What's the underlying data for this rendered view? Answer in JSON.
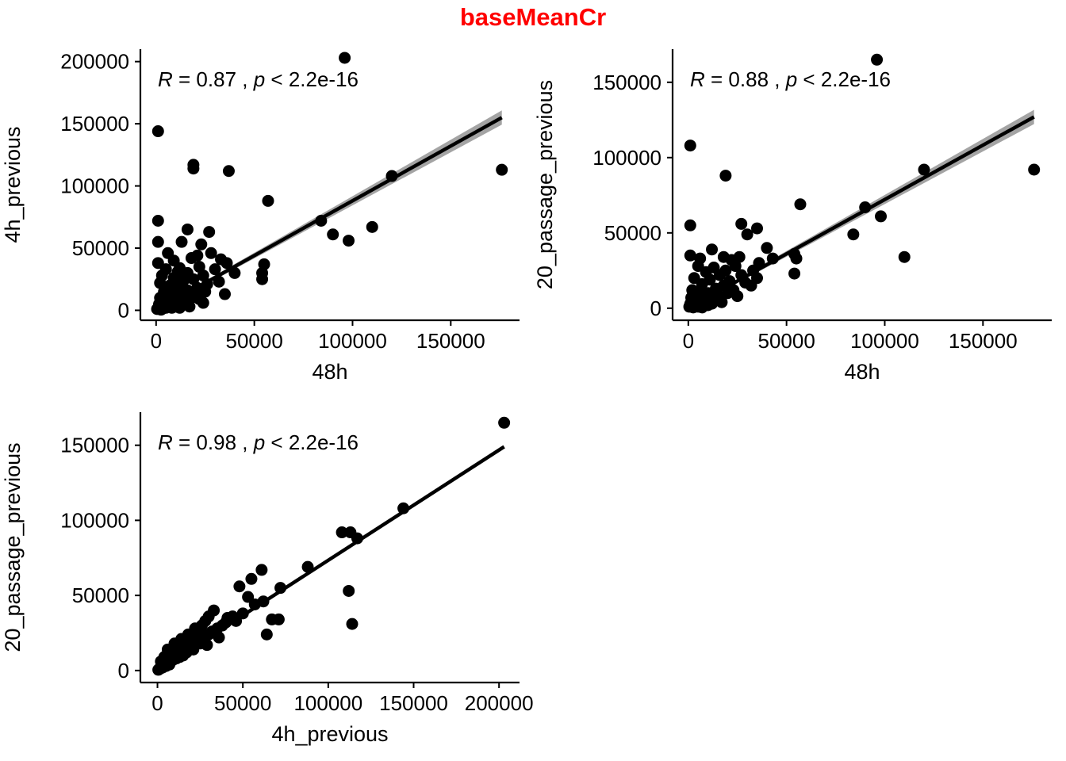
{
  "figure": {
    "title": "baseMeanCr",
    "title_color": "#ff0000"
  },
  "chart_data": [
    {
      "type": "scatter",
      "xlabel": "48h",
      "ylabel": "4h_previous",
      "xlim": [
        -8000,
        185000
      ],
      "ylim": [
        -8000,
        210000
      ],
      "x_ticks": [
        0,
        50000,
        100000,
        150000
      ],
      "x_tick_labels": [
        "0",
        "50000",
        "100000",
        "150000"
      ],
      "y_ticks": [
        0,
        50000,
        100000,
        150000,
        200000
      ],
      "y_tick_labels": [
        "0",
        "50000",
        "100000",
        "150000",
        "200000"
      ],
      "stat": {
        "r_label": "R",
        "r_value": "0.87",
        "p_label": "p",
        "p_value": "2.2e-16"
      },
      "fit": {
        "x0": 0,
        "y0": 0,
        "x1": 176000,
        "y1": 155000,
        "band": true
      },
      "points": [
        [
          96000,
          203000
        ],
        [
          1000,
          144000
        ],
        [
          19000,
          117000
        ],
        [
          19000,
          114000
        ],
        [
          37000,
          112000
        ],
        [
          120000,
          108000
        ],
        [
          176000,
          113000
        ],
        [
          57000,
          88000
        ],
        [
          84000,
          72000
        ],
        [
          90000,
          61000
        ],
        [
          98000,
          56000
        ],
        [
          110000,
          67000
        ],
        [
          1000,
          72000
        ],
        [
          1000,
          55000
        ],
        [
          16000,
          65000
        ],
        [
          27000,
          63000
        ],
        [
          13000,
          55000
        ],
        [
          6000,
          46000
        ],
        [
          23000,
          53000
        ],
        [
          1000,
          38000
        ],
        [
          9000,
          40000
        ],
        [
          18000,
          42000
        ],
        [
          21000,
          44000
        ],
        [
          28000,
          46000
        ],
        [
          33000,
          41000
        ],
        [
          36000,
          38000
        ],
        [
          40000,
          30000
        ],
        [
          55000,
          37000
        ],
        [
          54000,
          30000
        ],
        [
          54000,
          25000
        ],
        [
          35000,
          13000
        ],
        [
          30000,
          33000
        ],
        [
          32000,
          23000
        ],
        [
          3000,
          28000
        ],
        [
          5000,
          33000
        ],
        [
          7000,
          20000
        ],
        [
          9000,
          26000
        ],
        [
          11000,
          31000
        ],
        [
          14000,
          24000
        ],
        [
          16000,
          30000
        ],
        [
          19000,
          25000
        ],
        [
          21000,
          18000
        ],
        [
          24000,
          28000
        ],
        [
          26000,
          21000
        ],
        [
          12000,
          34000
        ],
        [
          22000,
          35000
        ],
        [
          25000,
          15000
        ],
        [
          2000,
          22000
        ],
        [
          4000,
          15000
        ],
        [
          6000,
          12000
        ],
        [
          8000,
          17000
        ],
        [
          10000,
          14000
        ],
        [
          12000,
          19000
        ],
        [
          14000,
          12000
        ],
        [
          16000,
          16000
        ],
        [
          18000,
          10000
        ],
        [
          20000,
          14000
        ],
        [
          22000,
          9000
        ],
        [
          24000,
          6000
        ],
        [
          2000,
          10000
        ],
        [
          3000,
          6000
        ],
        [
          5000,
          8000
        ],
        [
          7000,
          4000
        ],
        [
          9000,
          7000
        ],
        [
          11000,
          5000
        ],
        [
          13000,
          8000
        ],
        [
          15000,
          5000
        ],
        [
          17000,
          3000
        ],
        [
          1000,
          2000
        ],
        [
          2000,
          3000
        ],
        [
          3000,
          1000
        ],
        [
          4000,
          4000
        ],
        [
          5000,
          2000
        ],
        [
          6000,
          6000
        ],
        [
          8000,
          2000
        ],
        [
          10000,
          3000
        ],
        [
          12000,
          2000
        ],
        [
          1500,
          5000
        ],
        [
          500,
          1000
        ],
        [
          2500,
          500
        ],
        [
          4500,
          2500
        ],
        [
          7000,
          9000
        ]
      ]
    },
    {
      "type": "scatter",
      "xlabel": "48h",
      "ylabel": "20_passage_previous",
      "xlim": [
        -8000,
        185000
      ],
      "ylim": [
        -8000,
        172000
      ],
      "x_ticks": [
        0,
        50000,
        100000,
        150000
      ],
      "x_tick_labels": [
        "0",
        "50000",
        "100000",
        "150000"
      ],
      "y_ticks": [
        0,
        50000,
        100000,
        150000
      ],
      "y_tick_labels": [
        "0",
        "50000",
        "100000",
        "150000"
      ],
      "stat": {
        "r_label": "R",
        "r_value": "0.88",
        "p_label": "p",
        "p_value": "2.2e-16"
      },
      "fit": {
        "x0": 0,
        "y0": 0,
        "x1": 176000,
        "y1": 127000,
        "band": true
      },
      "points": [
        [
          96000,
          165000
        ],
        [
          1000,
          108000
        ],
        [
          19000,
          88000
        ],
        [
          120000,
          92000
        ],
        [
          176000,
          92000
        ],
        [
          90000,
          67000
        ],
        [
          98000,
          61000
        ],
        [
          57000,
          69000
        ],
        [
          84000,
          49000
        ],
        [
          110000,
          34000
        ],
        [
          54000,
          36000
        ],
        [
          55000,
          33000
        ],
        [
          54000,
          23000
        ],
        [
          1000,
          55000
        ],
        [
          27000,
          56000
        ],
        [
          35000,
          53000
        ],
        [
          30000,
          49000
        ],
        [
          40000,
          40000
        ],
        [
          43000,
          33000
        ],
        [
          1000,
          35000
        ],
        [
          6000,
          33000
        ],
        [
          12000,
          39000
        ],
        [
          18000,
          34000
        ],
        [
          22000,
          32000
        ],
        [
          26000,
          34000
        ],
        [
          36000,
          30000
        ],
        [
          33000,
          25000
        ],
        [
          35000,
          20000
        ],
        [
          32000,
          15000
        ],
        [
          5000,
          28000
        ],
        [
          9000,
          24000
        ],
        [
          13000,
          27000
        ],
        [
          16000,
          22000
        ],
        [
          19000,
          25000
        ],
        [
          21000,
          18000
        ],
        [
          24000,
          28000
        ],
        [
          27000,
          22000
        ],
        [
          29000,
          17000
        ],
        [
          3000,
          20000
        ],
        [
          7000,
          16000
        ],
        [
          11000,
          19000
        ],
        [
          14000,
          13000
        ],
        [
          18000,
          15000
        ],
        [
          20000,
          10000
        ],
        [
          23000,
          12000
        ],
        [
          25000,
          8000
        ],
        [
          2000,
          12000
        ],
        [
          4000,
          9000
        ],
        [
          6000,
          11000
        ],
        [
          8000,
          7000
        ],
        [
          10000,
          10000
        ],
        [
          12000,
          6000
        ],
        [
          15000,
          8000
        ],
        [
          17000,
          4000
        ],
        [
          1000,
          3000
        ],
        [
          2000,
          5000
        ],
        [
          3000,
          2000
        ],
        [
          4000,
          4000
        ],
        [
          5000,
          1000
        ],
        [
          6000,
          6000
        ],
        [
          8000,
          3000
        ],
        [
          10000,
          2000
        ],
        [
          12000,
          3000
        ],
        [
          500,
          1000
        ],
        [
          1500,
          7000
        ],
        [
          2500,
          500
        ],
        [
          7000,
          500
        ],
        [
          9000,
          5000
        ]
      ]
    },
    {
      "type": "scatter",
      "xlabel": "4h_previous",
      "ylabel": "20_passage_previous",
      "xlim": [
        -10000,
        212000
      ],
      "ylim": [
        -8000,
        172000
      ],
      "x_ticks": [
        0,
        50000,
        100000,
        150000,
        200000
      ],
      "x_tick_labels": [
        "0",
        "50000",
        "100000",
        "150000",
        "200000"
      ],
      "y_ticks": [
        0,
        50000,
        100000,
        150000
      ],
      "y_tick_labels": [
        "0",
        "50000",
        "100000",
        "150000"
      ],
      "stat": {
        "r_label": "R",
        "r_value": "0.98",
        "p_label": "p",
        "p_value": "2.2e-16"
      },
      "fit": {
        "x0": 0,
        "y0": 0,
        "x1": 203000,
        "y1": 149000,
        "band": false
      },
      "points": [
        [
          203000,
          165000
        ],
        [
          144000,
          108000
        ],
        [
          108000,
          92000
        ],
        [
          113000,
          92000
        ],
        [
          117000,
          88000
        ],
        [
          88000,
          69000
        ],
        [
          112000,
          53000
        ],
        [
          114000,
          31000
        ],
        [
          72000,
          55000
        ],
        [
          67000,
          34000
        ],
        [
          71000,
          34000
        ],
        [
          64000,
          24000
        ],
        [
          61000,
          67000
        ],
        [
          55000,
          61000
        ],
        [
          48000,
          56000
        ],
        [
          53000,
          49000
        ],
        [
          46000,
          33000
        ],
        [
          41000,
          35000
        ],
        [
          38000,
          30000
        ],
        [
          33000,
          40000
        ],
        [
          30000,
          36000
        ],
        [
          28000,
          33000
        ],
        [
          26000,
          30000
        ],
        [
          24000,
          26000
        ],
        [
          22000,
          28000
        ],
        [
          20000,
          22000
        ],
        [
          18000,
          24000
        ],
        [
          16000,
          19000
        ],
        [
          14000,
          21000
        ],
        [
          12000,
          16000
        ],
        [
          10000,
          18000
        ],
        [
          8000,
          12000
        ],
        [
          6000,
          14000
        ],
        [
          4000,
          9000
        ],
        [
          2000,
          6000
        ],
        [
          30000,
          24000
        ],
        [
          32000,
          26000
        ],
        [
          25000,
          18000
        ],
        [
          21000,
          14000
        ],
        [
          17000,
          12000
        ],
        [
          13000,
          9000
        ],
        [
          9000,
          7000
        ],
        [
          7000,
          4000
        ],
        [
          5000,
          3000
        ],
        [
          3000,
          2000
        ],
        [
          1000,
          1000
        ],
        [
          500,
          500
        ],
        [
          2000,
          1500
        ],
        [
          11000,
          8000
        ],
        [
          15000,
          10000
        ],
        [
          19000,
          16000
        ],
        [
          23000,
          20000
        ],
        [
          27000,
          22000
        ],
        [
          35000,
          28000
        ],
        [
          40000,
          32000
        ],
        [
          44000,
          36000
        ],
        [
          50000,
          38000
        ],
        [
          57000,
          44000
        ],
        [
          62000,
          46000
        ],
        [
          36000,
          22000
        ],
        [
          29000,
          17000
        ]
      ]
    }
  ]
}
